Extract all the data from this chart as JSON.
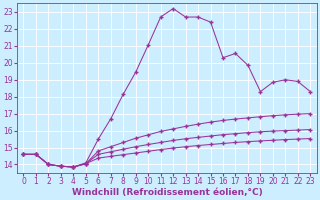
{
  "background_color": "#cceeff",
  "grid_color": "#ffffff",
  "line_color": "#993399",
  "xlabel": "Windchill (Refroidissement éolien,°C)",
  "xlabel_fontsize": 6.5,
  "tick_fontsize": 5.5,
  "xlim": [
    -0.5,
    23.5
  ],
  "ylim": [
    13.5,
    23.5
  ],
  "yticks": [
    14,
    15,
    16,
    17,
    18,
    19,
    20,
    21,
    22,
    23
  ],
  "xticks": [
    0,
    1,
    2,
    3,
    4,
    5,
    6,
    7,
    8,
    9,
    10,
    11,
    12,
    13,
    14,
    15,
    16,
    17,
    18,
    19,
    20,
    21,
    22,
    23
  ],
  "series1_x": [
    0,
    1,
    2,
    3,
    4,
    5,
    6,
    7,
    8,
    9,
    10,
    11,
    12,
    13,
    14,
    15,
    16,
    17,
    18,
    19,
    20,
    21,
    22,
    23
  ],
  "series1_y": [
    14.6,
    14.6,
    14.0,
    13.9,
    13.85,
    14.1,
    15.5,
    16.7,
    18.15,
    19.45,
    21.05,
    22.7,
    23.2,
    22.7,
    22.7,
    22.4,
    20.3,
    20.55,
    19.85,
    18.3,
    18.85,
    19.0,
    18.9,
    18.3
  ],
  "series2_x": [
    0,
    1,
    2,
    3,
    4,
    5,
    6,
    7,
    8,
    9,
    10,
    11,
    12,
    13,
    14,
    15,
    16,
    17,
    18,
    19,
    20,
    21,
    22,
    23
  ],
  "series2_y": [
    14.6,
    14.6,
    14.0,
    13.9,
    13.85,
    14.05,
    14.8,
    15.05,
    15.3,
    15.55,
    15.75,
    15.95,
    16.1,
    16.25,
    16.38,
    16.5,
    16.6,
    16.68,
    16.75,
    16.82,
    16.88,
    16.93,
    16.97,
    17.0
  ],
  "series3_x": [
    0,
    1,
    2,
    3,
    4,
    5,
    6,
    7,
    8,
    9,
    10,
    11,
    12,
    13,
    14,
    15,
    16,
    17,
    18,
    19,
    20,
    21,
    22,
    23
  ],
  "series3_y": [
    14.6,
    14.6,
    14.0,
    13.9,
    13.85,
    14.05,
    14.6,
    14.75,
    14.9,
    15.05,
    15.18,
    15.3,
    15.42,
    15.52,
    15.6,
    15.68,
    15.76,
    15.82,
    15.88,
    15.93,
    15.97,
    16.0,
    16.03,
    16.06
  ],
  "series4_x": [
    0,
    1,
    2,
    3,
    4,
    5,
    6,
    7,
    8,
    9,
    10,
    11,
    12,
    13,
    14,
    15,
    16,
    17,
    18,
    19,
    20,
    21,
    22,
    23
  ],
  "series4_y": [
    14.6,
    14.6,
    14.0,
    13.9,
    13.85,
    14.05,
    14.38,
    14.48,
    14.58,
    14.68,
    14.78,
    14.88,
    14.97,
    15.05,
    15.12,
    15.18,
    15.24,
    15.3,
    15.35,
    15.39,
    15.43,
    15.47,
    15.5,
    15.53
  ],
  "marker": "+",
  "markersize": 2.5,
  "linewidth": 0.75
}
